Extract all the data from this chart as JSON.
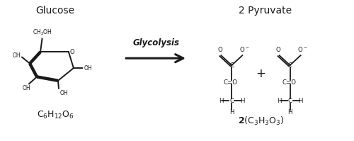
{
  "bg_color": "#ffffff",
  "title_glucose": "Glucose",
  "title_pyruvate": "2 Pyruvate",
  "arrow_label": "Glycolysis",
  "text_color": "#1a1a1a",
  "line_color": "#1a1a1a",
  "xlim": [
    0,
    10
  ],
  "ylim": [
    0,
    4
  ],
  "figsize": [
    5.0,
    1.99
  ],
  "dpi": 100
}
